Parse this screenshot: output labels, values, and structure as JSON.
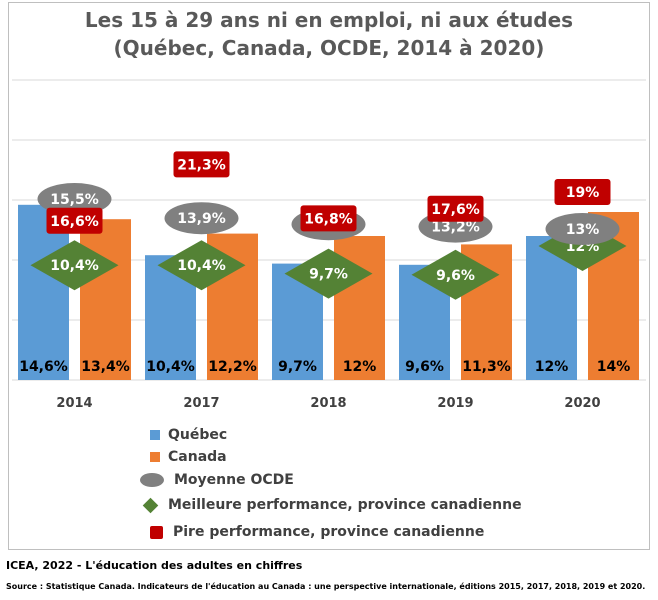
{
  "colors": {
    "quebec": "#5b9bd5",
    "canada": "#ed7d31",
    "oecd": "#808080",
    "best": "#548235",
    "worst": "#c00000"
  },
  "chart_data": {
    "type": "bar",
    "title_line1": "Les 15 à 29 ans ni en emploi, ni aux études",
    "title_line2": "(Québec, Canada, OCDE, 2014 à 2020)",
    "categories": [
      "2014",
      "2017",
      "2018",
      "2019",
      "2020"
    ],
    "ylim": [
      0,
      25
    ],
    "grid": true,
    "series": [
      {
        "name": "Québec",
        "values": [
          14.6,
          10.4,
          9.7,
          9.6,
          12
        ],
        "labels": [
          "14,6%",
          "10,4%",
          "9,7%",
          "9,6%",
          "12%"
        ]
      },
      {
        "name": "Canada",
        "values": [
          13.4,
          12.2,
          12,
          11.3,
          14
        ],
        "labels": [
          "13,4%",
          "12,2%",
          "12%",
          "11,3%",
          "14%"
        ]
      },
      {
        "name": "Moyenne OCDE",
        "values": [
          15.5,
          13.9,
          13.4,
          13.2,
          13
        ],
        "labels": [
          "15,5%",
          "13,9%",
          "13,4%",
          "13,2%",
          "13%"
        ]
      },
      {
        "name": "Meilleure performance, province canadienne",
        "values": [
          10.4,
          10.4,
          9.7,
          9.6,
          12
        ],
        "labels": [
          "10,4%",
          "10,4%",
          "9,7%",
          "9,6%",
          "12%"
        ]
      },
      {
        "name": "Pire performance, province canadienne",
        "values": [
          16.6,
          21.3,
          16.8,
          17.6,
          19
        ],
        "labels": [
          "16,6%",
          "21,3%",
          "16,8%",
          "17,6%",
          "19%"
        ]
      }
    ],
    "legend_position": "bottom"
  },
  "legend": [
    {
      "label": "Québec"
    },
    {
      "label": "Canada"
    },
    {
      "label": "Moyenne OCDE"
    },
    {
      "label": "Meilleure performance, province canadienne"
    },
    {
      "label": "Pire performance, province canadienne"
    }
  ],
  "footer": "ICEA, 2022 - L'éducation des adultes en chiffres",
  "source": "Source : Statistique Canada.  Indicateurs de l'éducation au Canada : une perspective internationale,  éditions  2015, 2017, 2018, 2019 et 2020."
}
